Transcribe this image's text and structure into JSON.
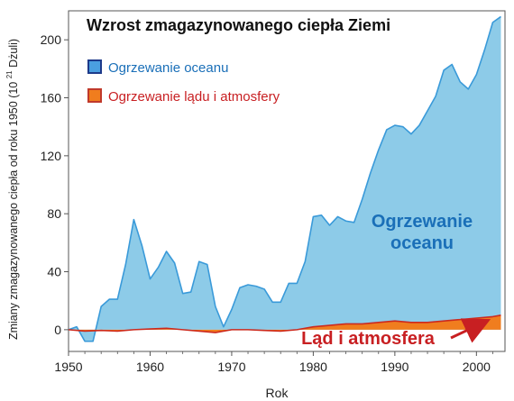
{
  "chart_data": {
    "type": "area",
    "title": "Wzrost zmagazynowanego ciepła Ziemi",
    "xlabel": "Rok",
    "ylabel_main": "Zmiany zmagazynowanego ciepła od roku 1950 (10",
    "ylabel_sup": "21",
    "ylabel_tail": "Dżuli)",
    "xlim": [
      1950,
      2003.5
    ],
    "ylim": [
      -15,
      220
    ],
    "x_ticks": [
      1950,
      1960,
      1970,
      1980,
      1990,
      2000
    ],
    "y_ticks": [
      0,
      40,
      80,
      120,
      160,
      200
    ],
    "grid": false,
    "legend_position": "top-left",
    "colors": {
      "ocean_fill": "#8dcbe8",
      "ocean_line": "#3a9ad9",
      "land_fill": "#f07d1e",
      "land_line": "#cc2a1e",
      "title_text": "#111111",
      "ocean_label": "#1a6fb8",
      "land_label": "#c81f22",
      "axis": "#555555"
    },
    "series": [
      {
        "name": "Ogrzewanie oceanu",
        "x": [
          1950,
          1951,
          1952,
          1953,
          1954,
          1955,
          1956,
          1957,
          1958,
          1959,
          1960,
          1961,
          1962,
          1963,
          1964,
          1965,
          1966,
          1967,
          1968,
          1969,
          1970,
          1971,
          1972,
          1973,
          1974,
          1975,
          1976,
          1977,
          1978,
          1979,
          1980,
          1981,
          1982,
          1983,
          1984,
          1985,
          1986,
          1987,
          1988,
          1989,
          1990,
          1991,
          1992,
          1993,
          1994,
          1995,
          1996,
          1997,
          1998,
          1999,
          2000,
          2001,
          2002,
          2003
        ],
        "values": [
          0,
          2,
          -8,
          -8,
          16,
          21,
          21,
          45,
          76,
          58,
          35,
          43,
          54,
          46,
          25,
          26,
          47,
          45,
          16,
          2,
          14,
          29,
          31,
          30,
          28,
          19,
          19,
          32,
          32,
          47,
          78,
          79,
          72,
          78,
          75,
          74,
          90,
          108,
          124,
          138,
          141,
          140,
          135,
          141,
          151,
          161,
          179,
          183,
          171,
          166,
          176,
          193,
          212,
          216
        ]
      },
      {
        "name": "Ogrzewanie lądu i atmosfery",
        "x": [
          1950,
          1952,
          1954,
          1956,
          1958,
          1960,
          1962,
          1964,
          1966,
          1968,
          1970,
          1972,
          1974,
          1976,
          1978,
          1980,
          1982,
          1984,
          1986,
          1988,
          1990,
          1992,
          1994,
          1996,
          1998,
          2000,
          2002,
          2003
        ],
        "values": [
          0,
          -1,
          -0.5,
          -1,
          0,
          0.5,
          1,
          0,
          -1,
          -2,
          0,
          0,
          -0.5,
          -1,
          0,
          2,
          3,
          4,
          4,
          5,
          6,
          5,
          5,
          6,
          7,
          8,
          9,
          10
        ]
      }
    ],
    "legend": [
      {
        "label": "Ogrzewanie oceanu",
        "swatch": "#4a9fe0",
        "border": "#1d3a8a",
        "text_color": "#1a6fb8"
      },
      {
        "label": "Ogrzewanie lądu i atmosfery",
        "swatch": "#f07d1e",
        "border": "#c0392b",
        "text_color": "#c81f22"
      }
    ],
    "annotations": {
      "ocean_line1": "Ogrzewanie",
      "ocean_line2": "oceanu",
      "land": "Ląd i atmosfera"
    }
  }
}
